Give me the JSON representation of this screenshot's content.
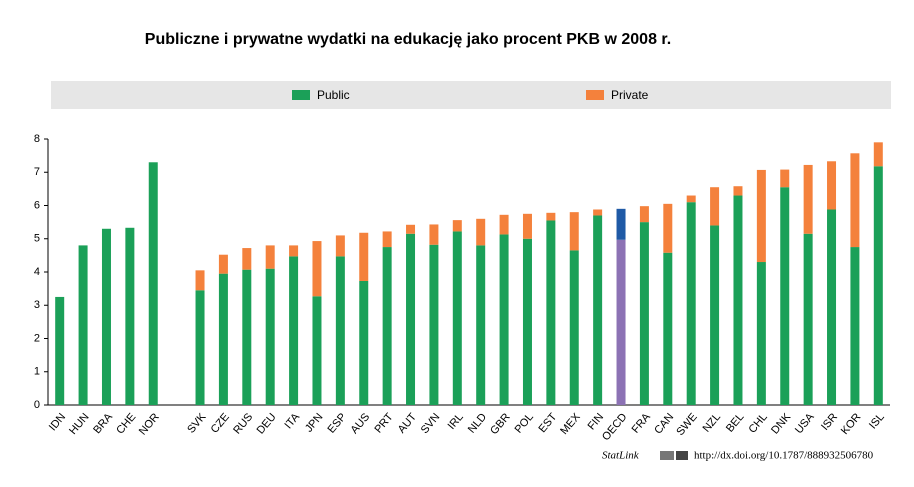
{
  "chart_data": {
    "type": "stacked_bar",
    "title": "Publiczne i prywatne wydatki na edukację jako procent PKB w 2008 r.",
    "categories": [
      "IDN",
      "HUN",
      "BRA",
      "CHE",
      "NOR",
      null,
      "SVK",
      "CZE",
      "RUS",
      "DEU",
      "ITA",
      "JPN",
      "ESP",
      "AUS",
      "PRT",
      "AUT",
      "SVN",
      "IRL",
      "NLD",
      "GBR",
      "POL",
      "EST",
      "MEX",
      "FIN",
      "OECD",
      "FRA",
      "CAN",
      "SWE",
      "NZL",
      "BEL",
      "CHL",
      "DNK",
      "USA",
      "ISR",
      "KOR",
      "ISL"
    ],
    "series": [
      {
        "name": "Public",
        "color": "#1ba058",
        "highlight_color": "#8c72b4",
        "values": [
          3.25,
          4.8,
          5.3,
          5.33,
          7.3,
          null,
          3.45,
          3.95,
          4.07,
          4.1,
          4.47,
          3.27,
          4.47,
          3.73,
          4.75,
          5.15,
          4.82,
          5.22,
          4.8,
          5.13,
          5.0,
          5.55,
          4.65,
          5.7,
          4.97,
          5.5,
          4.58,
          6.1,
          5.4,
          6.3,
          4.3,
          6.55,
          5.15,
          5.88,
          4.75,
          7.18
        ]
      },
      {
        "name": "Private",
        "color": "#f4813c",
        "highlight_color": "#1f5aa6",
        "values": [
          null,
          null,
          null,
          null,
          null,
          null,
          0.6,
          0.57,
          0.65,
          0.7,
          0.33,
          1.66,
          0.63,
          1.45,
          0.47,
          0.27,
          0.61,
          0.34,
          0.8,
          0.59,
          0.75,
          0.23,
          1.15,
          0.18,
          0.93,
          0.48,
          1.47,
          0.2,
          1.15,
          0.28,
          2.77,
          0.53,
          2.07,
          1.45,
          2.82,
          0.72
        ]
      }
    ],
    "highlight_category": "OECD",
    "ylim": [
      0,
      8
    ],
    "yticks": [
      0,
      1,
      2,
      3,
      4,
      5,
      6,
      7,
      8
    ],
    "legend": "top",
    "source_label": "StatLink",
    "source": "http://dx.doi.org/10.1787/888932506780"
  }
}
